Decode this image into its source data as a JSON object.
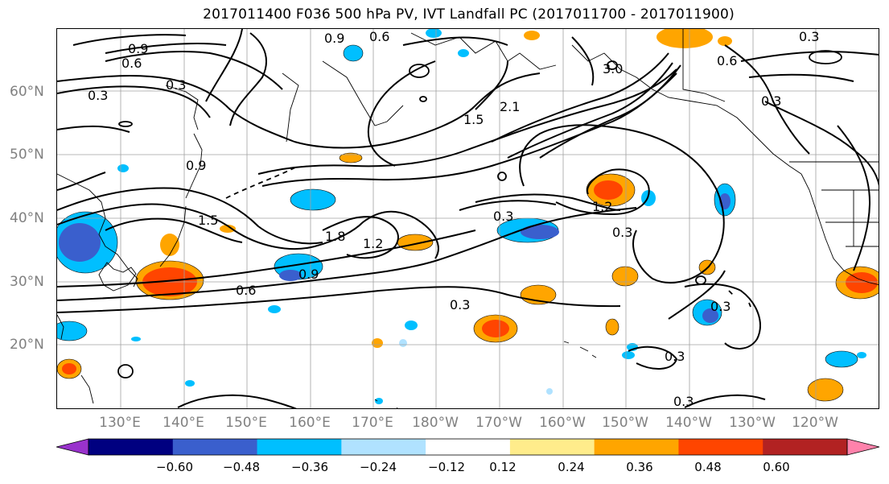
{
  "title": "2017011400 F036 500 hPa PV, IVT Landfall PC (2017011700 - 2017011900)",
  "lat_labels": [
    "60°N",
    "50°N",
    "40°N",
    "30°N",
    "20°N"
  ],
  "lon_labels": [
    "130°E",
    "140°E",
    "150°E",
    "160°E",
    "170°E",
    "180°W",
    "170°W",
    "160°W",
    "150°W",
    "140°W",
    "130°W",
    "120°W"
  ],
  "contour_labels": [
    "0.9",
    "0.6",
    "0.3",
    "0.3",
    "0.9",
    "0.6",
    "0.3",
    "1.5",
    "2.1",
    "0.3",
    "0.6",
    "0.9",
    "1.5",
    "1.8",
    "1.2",
    "0.9",
    "0.6",
    "1.2",
    "0.3",
    "0.3",
    "0.3",
    "0.3",
    "0.3",
    "0.3",
    "3.0"
  ],
  "colorbar": {
    "colors": [
      "#9932CC",
      "#000080",
      "#3A5FCD",
      "#00BFFF",
      "#B0E2FF",
      "#FFFFFF",
      "#FFEC8B",
      "#FFA500",
      "#FF4500",
      "#B22222",
      "#FF82AB"
    ],
    "tick_labels": [
      "−0.60",
      "−0.48",
      "−0.36",
      "−0.24",
      "−0.12",
      "0.12",
      "0.24",
      "0.36",
      "0.48",
      "0.60"
    ]
  },
  "colors": {
    "contour": "#000000",
    "grid": "#a0a0a0",
    "coast": "#000000",
    "axis_text": "#808080"
  }
}
